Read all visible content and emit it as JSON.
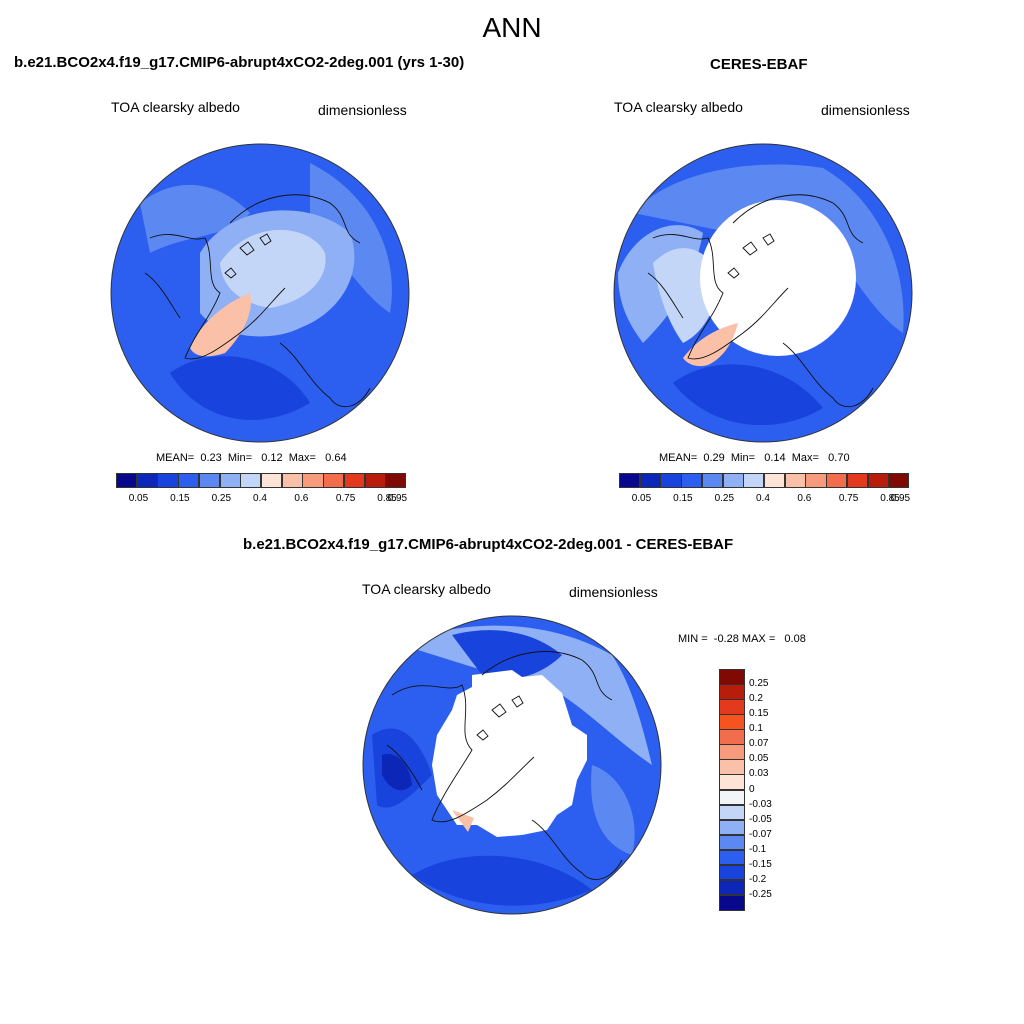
{
  "page": {
    "title": "ANN"
  },
  "panels": {
    "model": {
      "title": "b.e21.BCO2x4.f19_g17.CMIP6-abrupt4xCO2-2deg.001 (yrs 1-30)",
      "variable": "TOA clearsky albedo",
      "units": "dimensionless",
      "stats": {
        "mean_label": "MEAN=",
        "mean": "0.23",
        "min_label": "Min=",
        "min": "0.12",
        "max_label": "Max=",
        "max": "0.64"
      }
    },
    "obs": {
      "title": "CERES-EBAF",
      "variable": "TOA clearsky albedo",
      "units": "dimensionless",
      "stats": {
        "mean_label": "MEAN=",
        "mean": "0.29",
        "min_label": "Min=",
        "min": "0.14",
        "max_label": "Max=",
        "max": "0.70"
      }
    },
    "diff": {
      "title": "b.e21.BCO2x4.f19_g17.CMIP6-abrupt4xCO2-2deg.001 - CERES-EBAF",
      "variable": "TOA clearsky albedo",
      "units": "dimensionless",
      "stats": {
        "min_label": "MIN =",
        "min": "-0.28",
        "max_label": "MAX =",
        "max": "0.08"
      }
    }
  },
  "colorbars": {
    "horizontal": {
      "colors": [
        "#08088c",
        "#0c27b8",
        "#1843dc",
        "#2c5ff0",
        "#5c88f2",
        "#8fb0f5",
        "#c3d6f8",
        "#fde4d6",
        "#fbc0a8",
        "#f79b7c",
        "#f26d4c",
        "#e33a1e",
        "#b81c0a",
        "#7f0a03"
      ],
      "tick_labels": [
        "0.05",
        "0.15",
        "0.25",
        "0.4",
        "0.6",
        "0.75",
        "0.85",
        "0.95"
      ]
    },
    "vertical": {
      "colors": [
        "#7f0a03",
        "#b81c0a",
        "#e33a1e",
        "#f7531f",
        "#f26d4c",
        "#f79b7c",
        "#fbc0a8",
        "#fde4d6",
        "#f2f4f8",
        "#c3d6f8",
        "#8fb0f5",
        "#5c88f2",
        "#2c5ff0",
        "#1843dc",
        "#0c27b8",
        "#08088c"
      ],
      "tick_labels": [
        "0.25",
        "0.2",
        "0.15",
        "0.1",
        "0.07",
        "0.05",
        "0.03",
        "0",
        "-0.03",
        "-0.05",
        "-0.07",
        "-0.1",
        "-0.15",
        "-0.2",
        "-0.25"
      ]
    }
  }
}
